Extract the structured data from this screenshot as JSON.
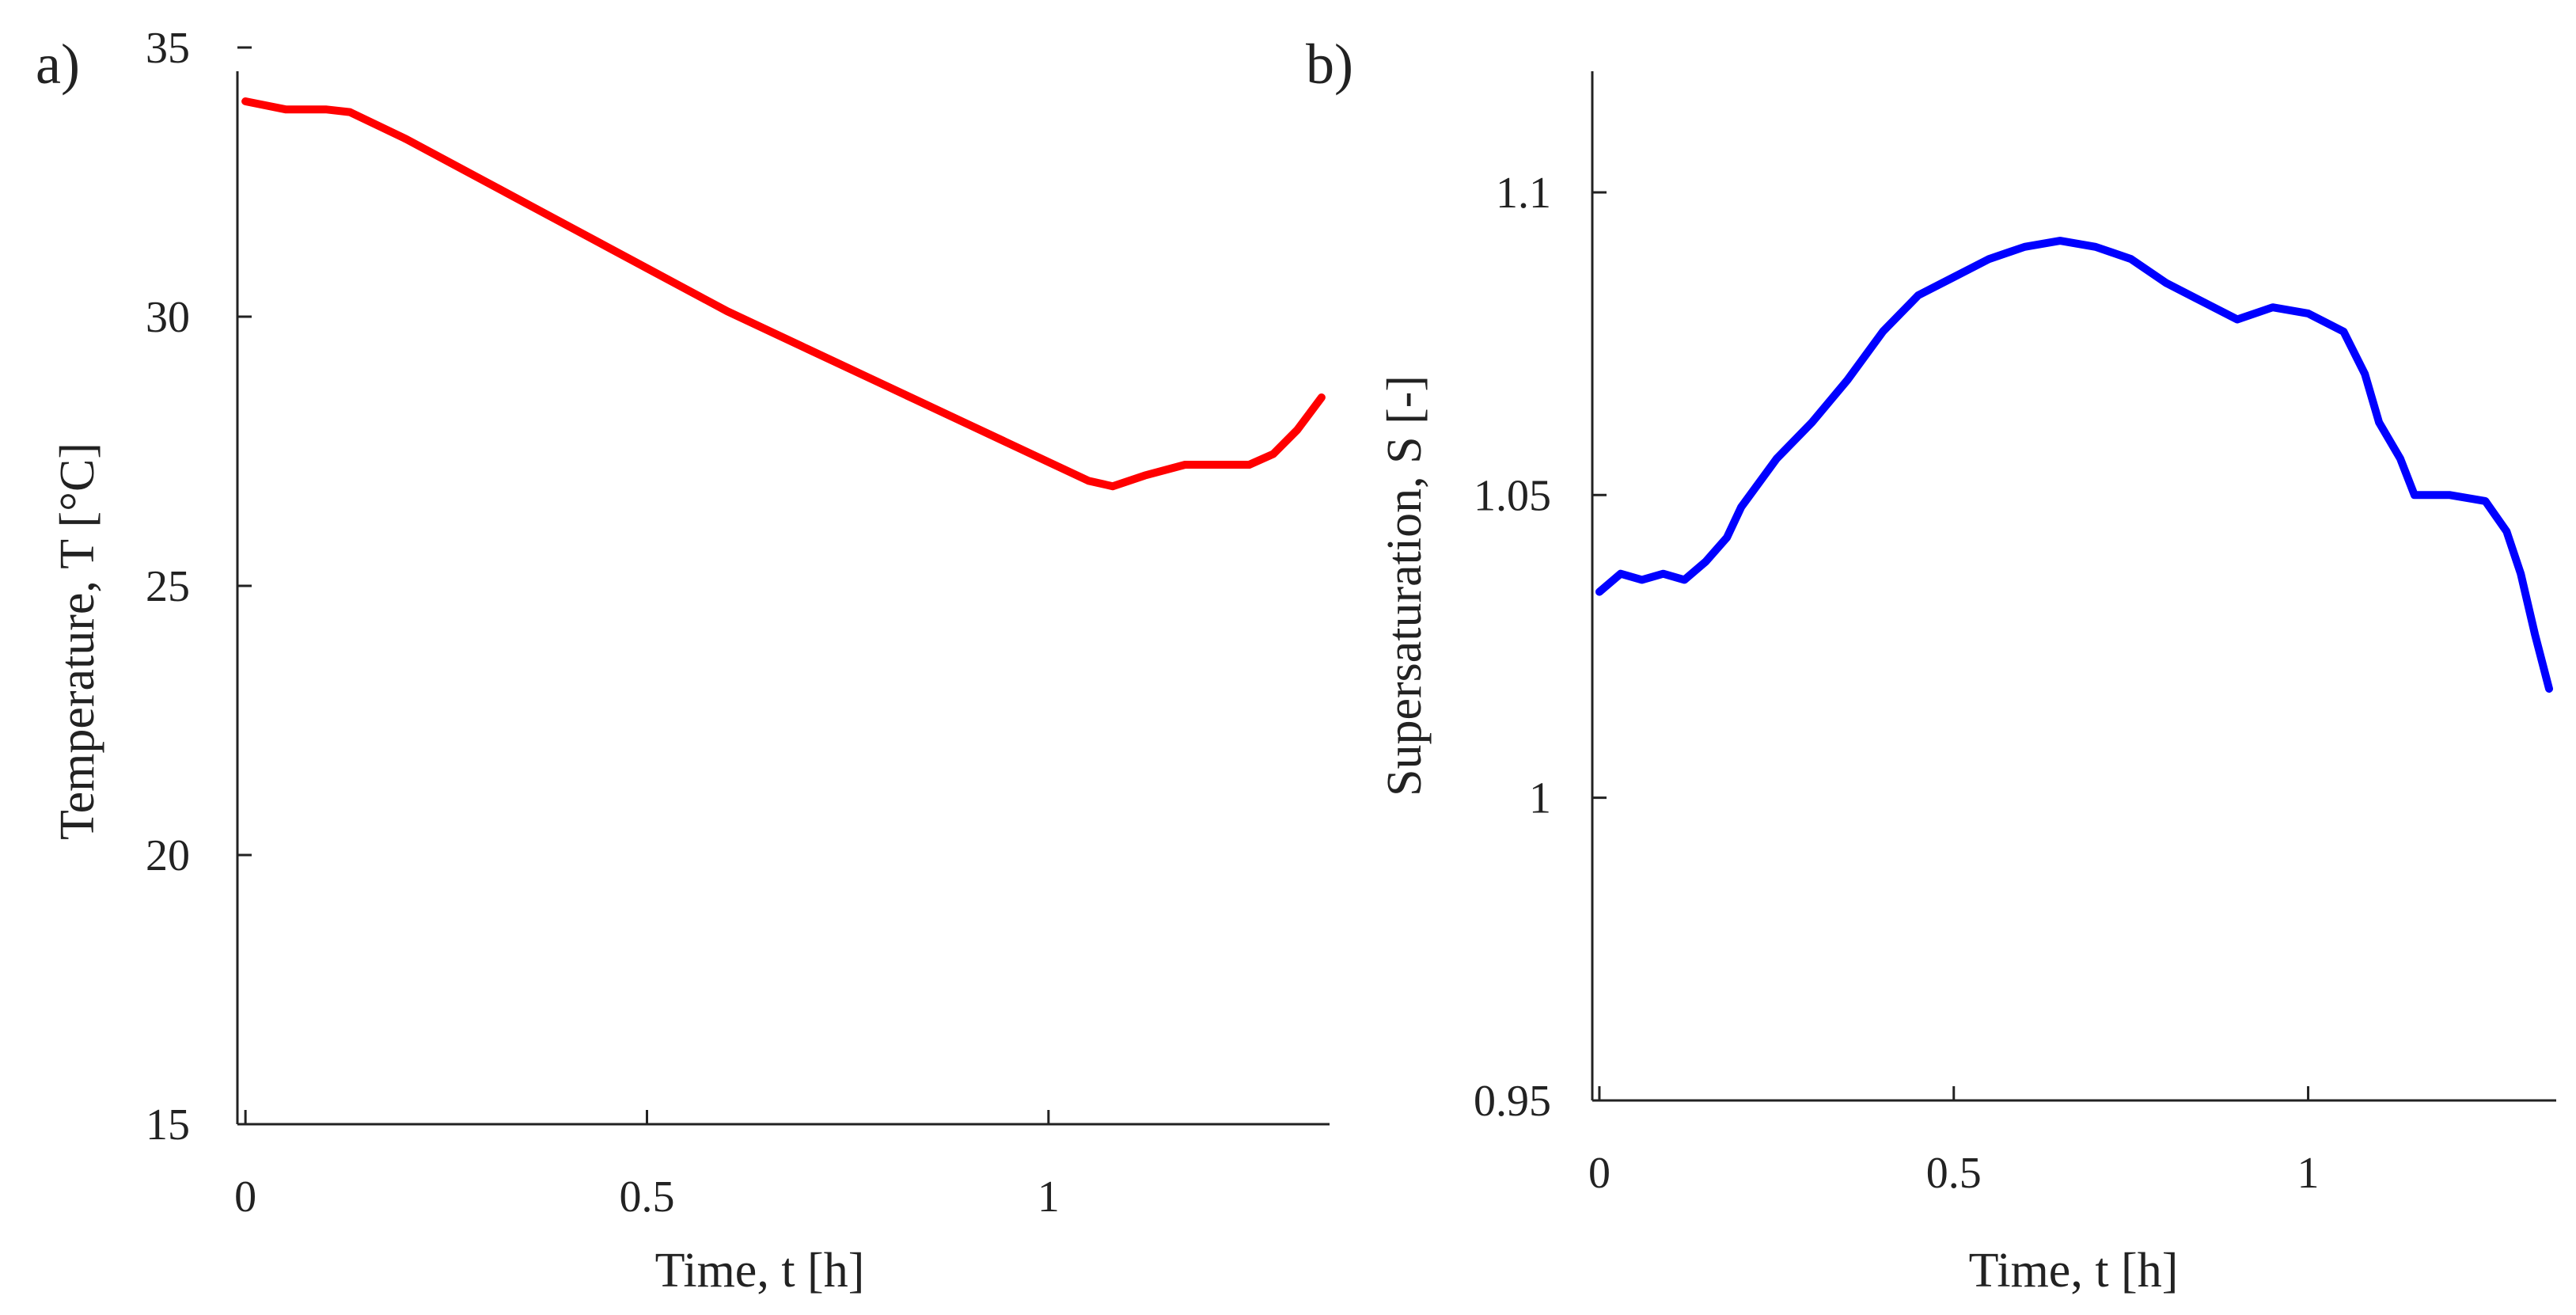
{
  "chart_data": [
    {
      "type": "line",
      "panel": "a)",
      "title": "",
      "xlabel": "Time, t [h]",
      "ylabel": "Temperature, T [°C]",
      "xlim": [
        -0.01,
        1.35
      ],
      "ylim": [
        15,
        35
      ],
      "xticks": [
        0,
        0.5,
        1
      ],
      "xtick_labels": [
        "0",
        "0.5",
        "1"
      ],
      "yticks": [
        15,
        20,
        25,
        30,
        35
      ],
      "ytick_labels": [
        "15",
        "20",
        "25",
        "30",
        "35"
      ],
      "grid": false,
      "series": [
        {
          "name": "Temperature",
          "color": "#ff0000",
          "x": [
            0,
            0.05,
            0.1,
            0.13,
            0.2,
            0.3,
            0.4,
            0.5,
            0.6,
            0.7,
            0.8,
            0.9,
            1.0,
            1.05,
            1.08,
            1.12,
            1.17,
            1.2,
            1.25,
            1.28,
            1.31,
            1.34
          ],
          "y": [
            34.0,
            33.85,
            33.85,
            33.8,
            33.3,
            32.5,
            31.7,
            30.9,
            30.1,
            29.4,
            28.7,
            28.0,
            27.3,
            26.95,
            26.85,
            27.05,
            27.25,
            27.25,
            27.25,
            27.45,
            27.9,
            28.5
          ]
        }
      ]
    },
    {
      "type": "line",
      "panel": "b)",
      "title": "",
      "xlabel": "Time, t [h]",
      "ylabel": "Supersaturation, S [-]",
      "xlim": [
        -0.01,
        1.35
      ],
      "ylim": [
        0.95,
        1.12
      ],
      "xticks": [
        0,
        0.5,
        1
      ],
      "xtick_labels": [
        "0",
        "0.5",
        "1"
      ],
      "yticks": [
        0.95,
        1.0,
        1.05,
        1.1
      ],
      "ytick_labels": [
        "0.95",
        "1",
        "1.05",
        "1.1"
      ],
      "grid": false,
      "series": [
        {
          "name": "Supersaturation",
          "color": "#0000ff",
          "x": [
            0,
            0.03,
            0.06,
            0.09,
            0.12,
            0.15,
            0.18,
            0.2,
            0.25,
            0.3,
            0.35,
            0.4,
            0.45,
            0.5,
            0.55,
            0.6,
            0.65,
            0.7,
            0.75,
            0.8,
            0.85,
            0.9,
            0.95,
            1.0,
            1.05,
            1.08,
            1.1,
            1.13,
            1.15,
            1.2,
            1.25,
            1.28,
            1.3,
            1.32,
            1.34
          ],
          "y": [
            1.034,
            1.037,
            1.036,
            1.037,
            1.036,
            1.039,
            1.043,
            1.048,
            1.056,
            1.062,
            1.069,
            1.077,
            1.083,
            1.086,
            1.089,
            1.091,
            1.092,
            1.091,
            1.089,
            1.085,
            1.082,
            1.079,
            1.081,
            1.08,
            1.077,
            1.07,
            1.062,
            1.056,
            1.05,
            1.05,
            1.049,
            1.044,
            1.037,
            1.027,
            1.018
          ]
        }
      ]
    }
  ]
}
